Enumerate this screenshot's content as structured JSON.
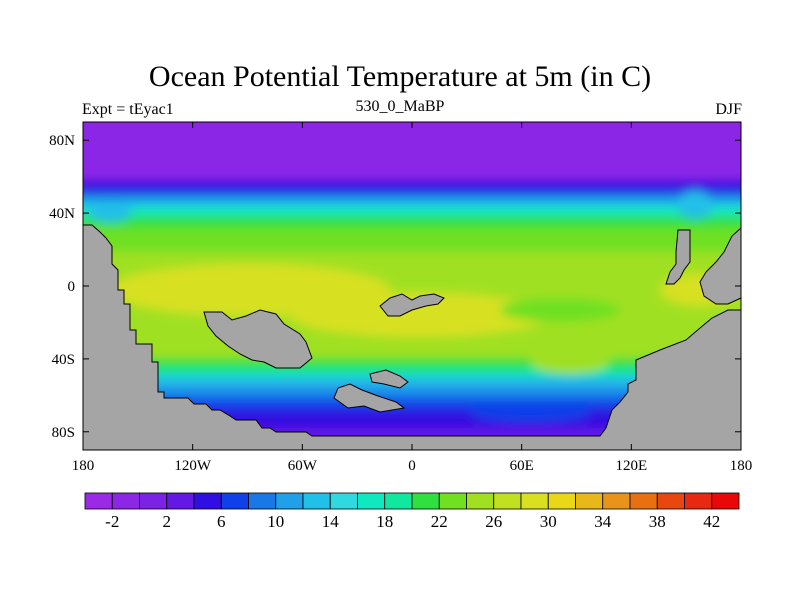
{
  "title": "Ocean Potential Temperature at 5m (in C)",
  "subtitle_left": "Expt = tEyac1",
  "subtitle_center": "530_0_MaBP",
  "subtitle_right": "DJF",
  "chart_data": {
    "type": "heatmap",
    "field": "ocean potential temperature",
    "depth": "5m",
    "units": "C",
    "x_domain": [
      -180,
      180
    ],
    "y_domain": [
      -90,
      90
    ],
    "x_ticks": [
      {
        "value": -180,
        "label": "180"
      },
      {
        "value": -120,
        "label": "120W"
      },
      {
        "value": -60,
        "label": "60W"
      },
      {
        "value": 0,
        "label": "0"
      },
      {
        "value": 60,
        "label": "60E"
      },
      {
        "value": 120,
        "label": "120E"
      },
      {
        "value": 180,
        "label": "180"
      }
    ],
    "y_ticks": [
      {
        "value": 80,
        "label": "80N"
      },
      {
        "value": 40,
        "label": "40N"
      },
      {
        "value": 0,
        "label": "0"
      },
      {
        "value": -40,
        "label": "40S"
      },
      {
        "value": -80,
        "label": "80S"
      }
    ],
    "colorbar": {
      "levels": [
        -4,
        -2,
        0,
        2,
        4,
        6,
        8,
        10,
        12,
        14,
        16,
        18,
        20,
        22,
        24,
        26,
        28,
        30,
        32,
        34,
        36,
        38,
        40,
        42,
        44
      ],
      "labels": [
        {
          "value": -2,
          "label": "-2"
        },
        {
          "value": 2,
          "label": "2"
        },
        {
          "value": 6,
          "label": "6"
        },
        {
          "value": 10,
          "label": "10"
        },
        {
          "value": 14,
          "label": "14"
        },
        {
          "value": 18,
          "label": "18"
        },
        {
          "value": 22,
          "label": "22"
        },
        {
          "value": 26,
          "label": "26"
        },
        {
          "value": 30,
          "label": "30"
        },
        {
          "value": 34,
          "label": "34"
        },
        {
          "value": 38,
          "label": "38"
        },
        {
          "value": 42,
          "label": "42"
        }
      ],
      "colors": [
        "#9a2ae6",
        "#8c27e6",
        "#7b22e6",
        "#6418e6",
        "#3010e0",
        "#1040e8",
        "#1878e8",
        "#20a0e8",
        "#20c0e8",
        "#30d8e0",
        "#10e8c0",
        "#10e8a0",
        "#30e040",
        "#70e020",
        "#a0e020",
        "#c0e020",
        "#d8e020",
        "#e8d818",
        "#e8b818",
        "#e89418",
        "#e87010",
        "#e84810",
        "#e82810",
        "#e80808"
      ]
    },
    "land_color": "#a5a5a5"
  }
}
